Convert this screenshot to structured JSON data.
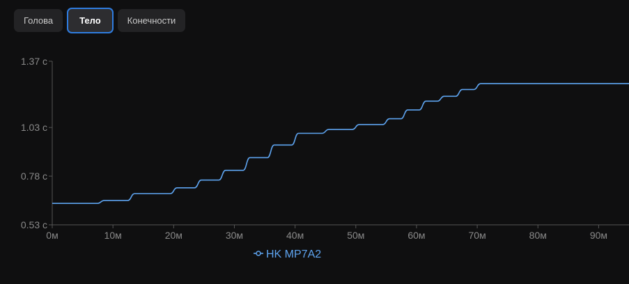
{
  "tabs": [
    {
      "label": "Голова",
      "active": false
    },
    {
      "label": "Тело",
      "active": true
    },
    {
      "label": "Конечности",
      "active": false
    }
  ],
  "chart_data": {
    "type": "line",
    "step": true,
    "xlim": [
      0,
      95
    ],
    "ylim": [
      0.53,
      1.37
    ],
    "x_ticks": [
      0,
      10,
      20,
      30,
      40,
      50,
      60,
      70,
      80,
      90
    ],
    "x_tick_labels": [
      "0м",
      "10м",
      "20м",
      "30м",
      "40м",
      "50м",
      "60м",
      "70м",
      "80м",
      "90м"
    ],
    "y_ticks": [
      0.53,
      0.78,
      1.03,
      1.37
    ],
    "y_tick_labels": [
      "0.53 с",
      "0.78 с",
      "1.03 с",
      "1.37 с"
    ],
    "legend_position": "bottom",
    "series": [
      {
        "name": "HK MP7A2",
        "color": "#5ea4f0",
        "steps": [
          [
            0,
            0.64
          ],
          [
            8,
            0.655
          ],
          [
            13,
            0.69
          ],
          [
            20,
            0.72
          ],
          [
            24,
            0.76
          ],
          [
            28,
            0.81
          ],
          [
            32,
            0.875
          ],
          [
            36,
            0.94
          ],
          [
            40,
            1.0
          ],
          [
            45,
            1.02
          ],
          [
            50,
            1.045
          ],
          [
            55,
            1.075
          ],
          [
            58,
            1.12
          ],
          [
            61,
            1.165
          ],
          [
            64,
            1.19
          ],
          [
            67,
            1.225
          ],
          [
            70,
            1.255
          ]
        ]
      }
    ]
  }
}
